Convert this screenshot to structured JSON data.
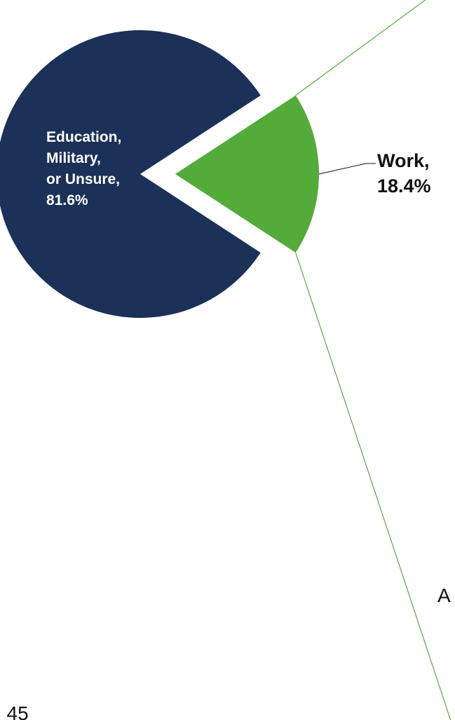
{
  "chart_data": {
    "type": "pie",
    "title": "",
    "slices": [
      {
        "label_lines": [
          "Education,",
          "Military,",
          "or Unsure,",
          "81.6%"
        ],
        "category": "Education, Military, or Unsure",
        "value": 81.6,
        "color": "#1b3158",
        "label_color": "#ffffff",
        "exploded": false
      },
      {
        "label_lines": [
          "Work,",
          "18.4%"
        ],
        "category": "Work",
        "value": 18.4,
        "color": "#53ab3a",
        "label_color": "#111111",
        "exploded": true
      }
    ],
    "connector_color": "#53ab3a",
    "leader_color": "#111111"
  },
  "fragments": {
    "right_letter": "A",
    "bottom_left": ": 45"
  }
}
